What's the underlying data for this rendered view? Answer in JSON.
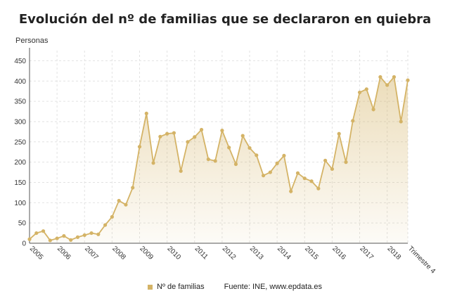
{
  "chart_data": {
    "type": "area",
    "title": "Evolución del nº de familias que se declararon en quiebra",
    "ylabel": "Personas",
    "xlabel": "",
    "ylim": [
      0,
      475
    ],
    "yticks": [
      0,
      50,
      100,
      150,
      200,
      250,
      300,
      350,
      400,
      450
    ],
    "x_tick_labels": [
      "2005",
      "2006",
      "2007",
      "2008",
      "2009",
      "2010",
      "2011",
      "2012",
      "2013",
      "2014",
      "2015",
      "2016",
      "2017",
      "2018",
      "Trimestre 4"
    ],
    "grid": true,
    "legend_position": "bottom",
    "series": [
      {
        "name": "Nº de familias",
        "color": "#d4b366",
        "values": [
          10,
          25,
          30,
          7,
          12,
          18,
          8,
          15,
          20,
          25,
          22,
          45,
          65,
          105,
          95,
          137,
          238,
          320,
          198,
          263,
          270,
          272,
          178,
          250,
          262,
          280,
          207,
          203,
          278,
          236,
          195,
          265,
          235,
          217,
          167,
          175,
          197,
          216,
          128,
          173,
          160,
          153,
          135,
          204,
          183,
          270,
          200,
          302,
          372,
          380,
          330,
          410,
          390,
          410,
          300,
          402
        ]
      }
    ]
  },
  "legend": {
    "series_label": "Nº de familias",
    "source": "Fuente: INE, www.epdata.es"
  }
}
